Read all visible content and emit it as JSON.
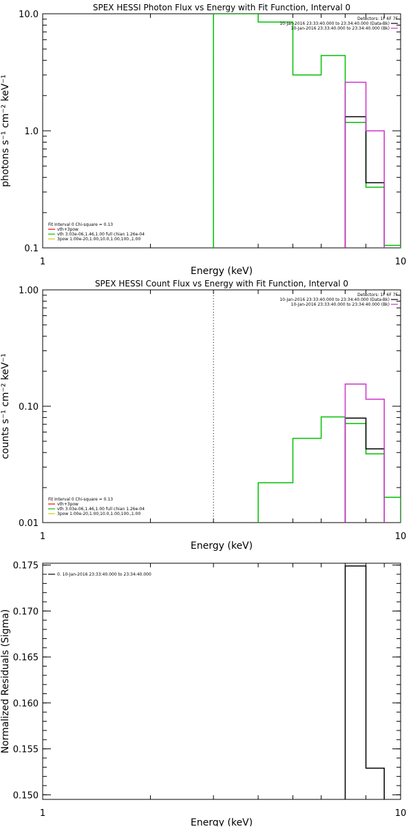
{
  "chart_data": [
    {
      "type": "line",
      "step": true,
      "title": "SPEX HESSI Photon Flux vs Energy with Fit Function, Interval 0",
      "xlabel": "Energy (keV)",
      "ylabel": "photons s⁻¹ cm⁻² keV⁻¹",
      "xscale": "log",
      "yscale": "log",
      "xlim": [
        1,
        10
      ],
      "ylim": [
        0.1,
        10.0
      ],
      "x_ticks": [
        {
          "value": 1,
          "label": "1"
        },
        {
          "value": 10,
          "label": "10"
        }
      ],
      "y_ticks": [
        {
          "value": 0.1,
          "label": "0.1"
        },
        {
          "value": 1.0,
          "label": "1.0"
        },
        {
          "value": 10.0,
          "label": "10.0"
        }
      ],
      "marker_x": 3.0,
      "marker_color": "#00c000",
      "marker_style": "dashed",
      "legend_right": {
        "header": "Detectors: 1F 6F 7F",
        "entries": [
          {
            "text": "10-Jan-2016 23:33:40.000 to 23:34:40.000 (Data-Bk)",
            "color": "#000000"
          },
          {
            "text": "10-Jan-2016 23:33:40.000 to 23:34:40.000 (Bk)",
            "color": "#cc33cc"
          }
        ]
      },
      "legend_left": {
        "header": "Fit Interval 0   Chi-square = 0.13",
        "entries": [
          {
            "text": "vth+3pow",
            "color": "#ff0000"
          },
          {
            "text": "vth 3.03e-06,1.46,1.00  full chian 1.26e-04",
            "color": "#00c000"
          },
          {
            "text": "3pow 1.00e-20,1.00,10.0,1.00,100.,1.00",
            "color": "#cccc00"
          }
        ]
      },
      "series": [
        {
          "color": "#00c000",
          "edges": [
            3,
            4,
            5,
            6,
            7,
            8,
            9,
            10
          ],
          "values": [
            12,
            8.5,
            3.0,
            4.4,
            1.18,
            0.33,
            0.105
          ]
        },
        {
          "color": "#000000",
          "edges": [
            7,
            8,
            9
          ],
          "values": [
            1.32,
            0.36
          ]
        },
        {
          "color": "#cc33cc",
          "edges": [
            7,
            8,
            9
          ],
          "values": [
            2.6,
            1.0
          ]
        }
      ]
    },
    {
      "type": "line",
      "step": true,
      "title": "SPEX HESSI Count Flux vs Energy with Fit Function, Interval 0",
      "xlabel": "Energy (keV)",
      "ylabel": "counts s⁻¹ cm⁻² keV⁻¹",
      "xscale": "log",
      "yscale": "log",
      "xlim": [
        1,
        10
      ],
      "ylim": [
        0.01,
        1.0
      ],
      "x_ticks": [
        {
          "value": 1,
          "label": "1"
        },
        {
          "value": 10,
          "label": "10"
        }
      ],
      "y_ticks": [
        {
          "value": 0.01,
          "label": "0.01"
        },
        {
          "value": 0.1,
          "label": "0.10"
        },
        {
          "value": 1.0,
          "label": "1.00"
        }
      ],
      "marker_x": 3.0,
      "marker_color": "#000000",
      "marker_style": "dotted",
      "legend_right": {
        "header": "Detectors: 1F 6F 7F",
        "entries": [
          {
            "text": "10-Jan-2016 23:33:40.000 to 23:34:40.000 (Data-Bk)",
            "color": "#000000"
          },
          {
            "text": "10-Jan-2016 23:33:40.000 to 23:34:40.000 (Bk)",
            "color": "#cc33cc"
          }
        ]
      },
      "legend_left": {
        "header": "Fit Interval 0   Chi-square = 0.13",
        "entries": [
          {
            "text": "vth+3pow",
            "color": "#ff0000"
          },
          {
            "text": "vth 3.03e-06,1.46,1.00  full chian 1.26e-04",
            "color": "#00c000"
          },
          {
            "text": "3pow 1.00e-20,1.00,10.0,1.00,100.,1.00",
            "color": "#cccc00"
          }
        ]
      },
      "series": [
        {
          "color": "#00c000",
          "edges": [
            4,
            5,
            6,
            7,
            8,
            9,
            10
          ],
          "values": [
            0.022,
            0.053,
            0.081,
            0.071,
            0.039,
            0.0165
          ]
        },
        {
          "color": "#000000",
          "edges": [
            7,
            8,
            9
          ],
          "values": [
            0.079,
            0.043
          ]
        },
        {
          "color": "#cc33cc",
          "edges": [
            7,
            8,
            9
          ],
          "values": [
            0.155,
            0.115
          ]
        }
      ]
    },
    {
      "type": "line",
      "step": true,
      "title": "",
      "xlabel": "Energy (keV)",
      "ylabel": "Normalized Residuals (Sigma)",
      "xscale": "log",
      "yscale": "linear",
      "xlim": [
        1,
        10
      ],
      "ylim": [
        0.1495,
        0.1752
      ],
      "x_ticks": [
        {
          "value": 1,
          "label": "1"
        },
        {
          "value": 10,
          "label": "10"
        }
      ],
      "y_ticks": [
        {
          "value": 0.15,
          "label": "0.150"
        },
        {
          "value": 0.155,
          "label": "0.155"
        },
        {
          "value": 0.16,
          "label": "0.160"
        },
        {
          "value": 0.165,
          "label": "0.165"
        },
        {
          "value": 0.17,
          "label": "0.170"
        },
        {
          "value": 0.175,
          "label": "0.175"
        }
      ],
      "legend_left": {
        "header": "",
        "entries": [
          {
            "text": "0. 10-Jan-2016 23:33:40.000 to 23:34:40.000",
            "color": "#000000"
          }
        ]
      },
      "series": [
        {
          "color": "#000000",
          "edges": [
            7,
            8,
            9
          ],
          "values": [
            0.1749,
            0.1529
          ]
        }
      ]
    }
  ]
}
